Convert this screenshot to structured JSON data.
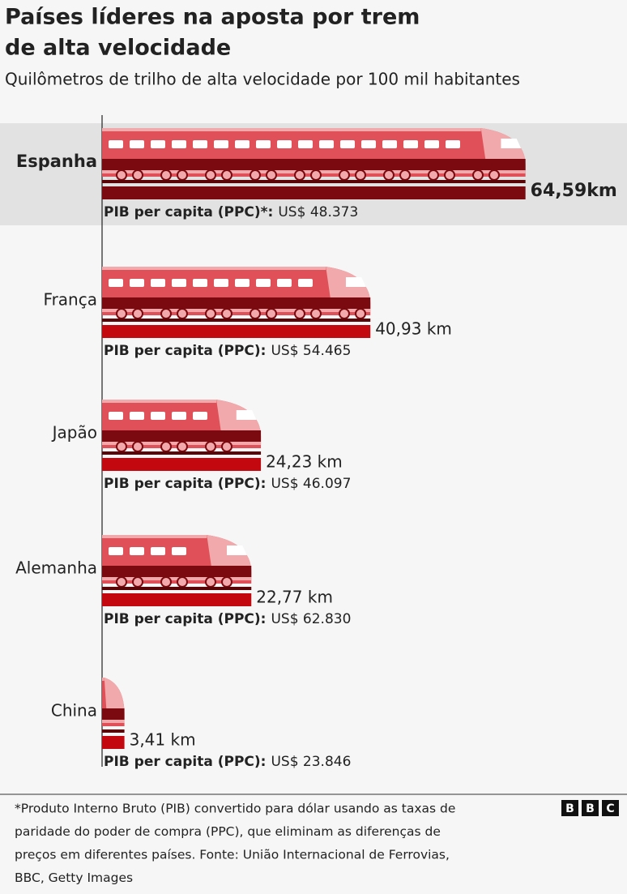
{
  "chart_data": {
    "type": "bar",
    "title": [
      "Países líderes na aposta por trem",
      "de alta velocidade"
    ],
    "subtitle": "Quilômetros de trilho de alta velocidade por 100 mil habitantes",
    "categories": [
      "Espanha",
      "França",
      "Japão",
      "Alemanha",
      "China"
    ],
    "values": [
      64.59,
      40.93,
      24.23,
      22.77,
      3.41
    ],
    "value_labels": [
      "64,59km",
      "40,93 km",
      "24,23 km",
      "22,77 km",
      "3,41 km"
    ],
    "highlight": "Espanha",
    "gdp_labels": [
      "PIB per capita (PPC)*:",
      "PIB per capita (PPC):",
      "PIB per capita (PPC):",
      "PIB per capita (PPC):",
      "PIB per capita (PPC):"
    ],
    "gdp_values": [
      "US$ 48.373",
      "US$ 54.465",
      "US$ 46.097",
      "US$ 62.830",
      "US$ 23.846"
    ],
    "xlim": [
      0,
      65
    ],
    "color": "#c4080f",
    "highlight_color": "#7a0a0f",
    "footnote": [
      "*Produto Interno Bruto (PIB) convertido para dólar usando as taxas de",
      "paridade do poder de compra (PPC), que eliminam as diferenças de",
      "preços em diferentes países. Fonte: União Internacional de Ferrovias,",
      "BBC, Getty Images"
    ],
    "logo": [
      "B",
      "B",
      "C"
    ]
  }
}
